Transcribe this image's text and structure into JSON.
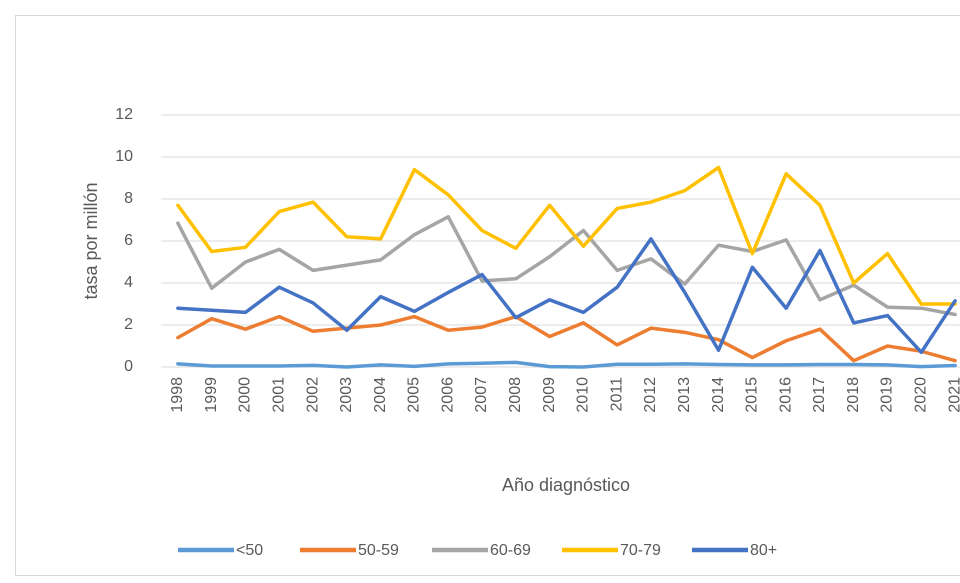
{
  "chart_data": {
    "type": "line",
    "y_label": "tasa por millón",
    "x_label": "Año diagnóstico",
    "categories": [
      "1998",
      "1999",
      "2000",
      "2001",
      "2002",
      "2003",
      "2004",
      "2005",
      "2006",
      "2007",
      "2008",
      "2009",
      "2010",
      "2011",
      "2012",
      "2013",
      "2014",
      "2015",
      "2016",
      "2017",
      "2018",
      "2019",
      "2020",
      "2021"
    ],
    "series": [
      {
        "name": "<50",
        "color": "#5b9bd5",
        "values": [
          0.15,
          0.05,
          0.05,
          0.05,
          0.08,
          0,
          0.1,
          0.03,
          0.15,
          0.18,
          0.22,
          0.02,
          0,
          0.13,
          0.13,
          0.15,
          0.12,
          0.1,
          0.1,
          0.12,
          0.12,
          0.1,
          0.02,
          0.07
        ]
      },
      {
        "name": "50-59",
        "color": "#ed7d31",
        "values": [
          1.4,
          2.3,
          1.8,
          2.4,
          1.7,
          1.85,
          2.0,
          2.4,
          1.75,
          1.9,
          2.4,
          1.45,
          2.1,
          1.05,
          1.85,
          1.65,
          1.3,
          0.45,
          1.25,
          1.8,
          0.3,
          1.0,
          0.75,
          0.3
        ]
      },
      {
        "name": "60-69",
        "color": "#a5a5a5",
        "values": [
          6.85,
          3.75,
          5.0,
          5.6,
          4.6,
          4.85,
          5.1,
          6.3,
          7.15,
          4.1,
          4.2,
          5.25,
          6.5,
          4.6,
          5.15,
          3.95,
          5.8,
          5.5,
          6.05,
          3.2,
          3.9,
          2.85,
          2.8,
          2.5
        ]
      },
      {
        "name": "70-79",
        "color": "#ffc000",
        "values": [
          7.7,
          5.5,
          5.7,
          7.4,
          7.85,
          6.2,
          6.1,
          9.4,
          8.2,
          6.5,
          5.65,
          7.7,
          5.75,
          7.55,
          7.85,
          8.4,
          9.5,
          5.4,
          9.2,
          7.7,
          4.0,
          5.4,
          3.0,
          3.0
        ]
      },
      {
        "name": "80+",
        "color": "#4472c4",
        "values": [
          2.8,
          2.7,
          2.6,
          3.8,
          3.05,
          1.75,
          3.35,
          2.65,
          3.55,
          4.4,
          2.35,
          3.2,
          2.6,
          3.8,
          6.1,
          3.55,
          0.8,
          4.75,
          2.8,
          5.55,
          2.1,
          2.45,
          0.7,
          3.15
        ]
      }
    ],
    "ylim": [
      0,
      12
    ],
    "yticks": [
      0,
      2,
      4,
      6,
      8,
      10,
      12
    ],
    "grid": true,
    "legend": "bottom"
  }
}
